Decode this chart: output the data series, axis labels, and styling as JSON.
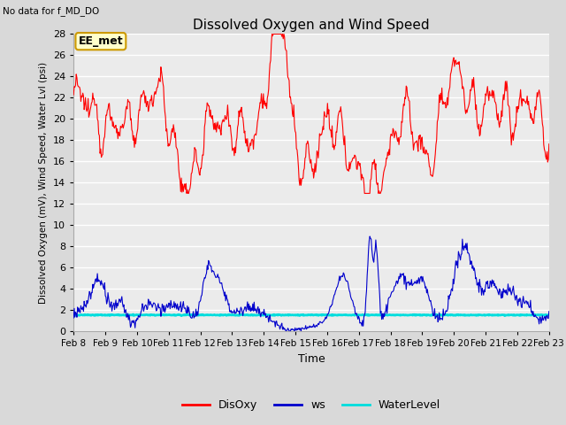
{
  "title": "Dissolved Oxygen and Wind Speed",
  "subtitle": "No data for f_MD_DO",
  "ylabel": "Dissolved Oxygen (mV), Wind Speed, Water Lvl (psi)",
  "xlabel": "Time",
  "annotation": "EE_met",
  "ylim": [
    0,
    28
  ],
  "yticks": [
    0,
    2,
    4,
    6,
    8,
    10,
    12,
    14,
    16,
    18,
    20,
    22,
    24,
    26,
    28
  ],
  "xtick_labels": [
    "Feb 8",
    "Feb 9",
    "Feb 10",
    "Feb 11",
    "Feb 12",
    "Feb 13",
    "Feb 14",
    "Feb 15",
    "Feb 16",
    "Feb 17",
    "Feb 18",
    "Feb 19",
    "Feb 20",
    "Feb 21",
    "Feb 22",
    "Feb 23"
  ],
  "disoxy_color": "#ff0000",
  "ws_color": "#0000cc",
  "wl_color": "#00dddd",
  "bg_color": "#d9d9d9",
  "plot_bg_color": "#ebebeb",
  "legend_labels": [
    "DisOxy",
    "ws",
    "WaterLevel"
  ],
  "water_level_value": 1.55,
  "n_days": 15,
  "n_pts": 720
}
